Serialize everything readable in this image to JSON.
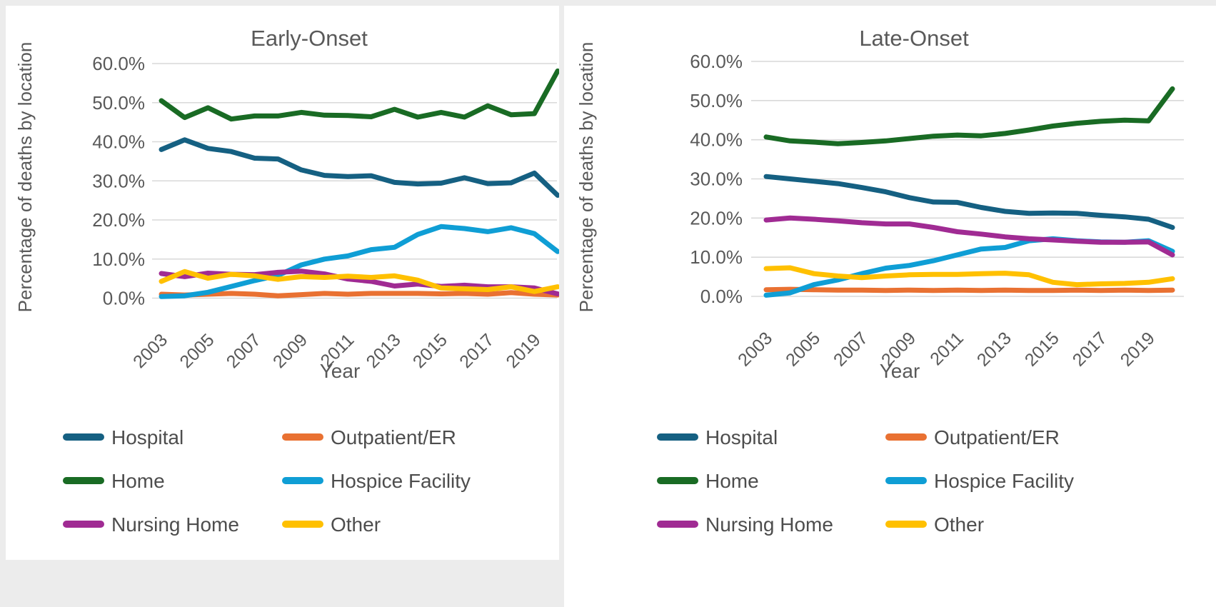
{
  "page": {
    "background": "#ececec",
    "panel_background": "#ffffff",
    "text_color": "#595959",
    "grid_color": "#d9d9d9"
  },
  "chart_data": [
    {
      "type": "line",
      "title": "Early-Onset",
      "ylabel": "Percentage of deaths by location",
      "xlabel": "Year",
      "x": [
        2003,
        2004,
        2005,
        2006,
        2007,
        2008,
        2009,
        2010,
        2011,
        2012,
        2013,
        2014,
        2015,
        2016,
        2017,
        2018,
        2019,
        2020
      ],
      "x_tick_years": [
        2003,
        2005,
        2007,
        2009,
        2011,
        2013,
        2015,
        2017,
        2019
      ],
      "x_tick_labels": [
        "2003",
        "2005",
        "2007",
        "2009",
        "2011",
        "2013",
        "2015",
        "2017",
        "2019"
      ],
      "ylim": [
        0,
        60
      ],
      "y_tick_values": [
        60,
        50,
        40,
        30,
        20,
        10,
        0
      ],
      "y_tick_labels": [
        "60.0%",
        "50.0%",
        "40.0%",
        "30.0%",
        "20.0%",
        "10.0%",
        "0.0%"
      ],
      "grid": true,
      "legend_position": "bottom",
      "series": [
        {
          "name": "Hospital",
          "color": "#156082",
          "values": [
            38.0,
            40.5,
            38.3,
            37.5,
            35.8,
            35.6,
            32.8,
            31.4,
            31.1,
            31.3,
            29.6,
            29.2,
            29.4,
            30.8,
            29.3,
            29.5,
            32.0,
            26.3
          ]
        },
        {
          "name": "Outpatient/ER",
          "color": "#E97132",
          "values": [
            1.0,
            0.8,
            1.0,
            1.2,
            1.0,
            0.6,
            0.9,
            1.2,
            1.0,
            1.2,
            1.2,
            1.2,
            1.1,
            1.2,
            1.0,
            1.4,
            1.0,
            0.8
          ]
        },
        {
          "name": "Home",
          "color": "#196B24",
          "values": [
            50.5,
            46.2,
            48.7,
            45.8,
            46.6,
            46.6,
            47.5,
            46.8,
            46.7,
            46.4,
            48.3,
            46.3,
            47.5,
            46.3,
            49.2,
            46.9,
            47.2,
            58.1
          ]
        },
        {
          "name": "Hospice Facility",
          "color": "#0F9ED5",
          "values": [
            0.4,
            0.6,
            1.5,
            3.0,
            4.5,
            5.8,
            8.5,
            10.0,
            10.8,
            12.4,
            13.0,
            16.3,
            18.3,
            17.8,
            17.0,
            18.0,
            16.5,
            11.9
          ]
        },
        {
          "name": "Nursing Home",
          "color": "#A02B93",
          "values": [
            6.3,
            5.5,
            6.4,
            6.1,
            6.0,
            6.6,
            6.9,
            6.2,
            4.9,
            4.3,
            3.1,
            3.6,
            3.0,
            3.3,
            2.9,
            2.9,
            2.6,
            1.1
          ]
        },
        {
          "name": "Other",
          "color": "#FFC000",
          "values": [
            4.3,
            6.8,
            5.1,
            6.1,
            5.7,
            4.8,
            5.5,
            5.3,
            5.6,
            5.3,
            5.7,
            4.6,
            2.6,
            2.4,
            2.2,
            2.9,
            1.7,
            2.9
          ]
        }
      ]
    },
    {
      "type": "line",
      "title": "Late-Onset",
      "ylabel": "Percentage of deaths by location",
      "xlabel": "Year",
      "x": [
        2003,
        2004,
        2005,
        2006,
        2007,
        2008,
        2009,
        2010,
        2011,
        2012,
        2013,
        2014,
        2015,
        2016,
        2017,
        2018,
        2019,
        2020
      ],
      "x_tick_years": [
        2003,
        2005,
        2007,
        2009,
        2011,
        2013,
        2015,
        2017,
        2019
      ],
      "x_tick_labels": [
        "2003",
        "2005",
        "2007",
        "2009",
        "2011",
        "2013",
        "2015",
        "2017",
        "2019"
      ],
      "ylim": [
        0,
        60
      ],
      "y_tick_values": [
        60,
        50,
        40,
        30,
        20,
        10,
        0
      ],
      "y_tick_labels": [
        "60.0%",
        "50.0%",
        "40.0%",
        "30.0%",
        "20.0%",
        "10.0%",
        "0.0%"
      ],
      "grid": true,
      "legend_position": "bottom",
      "series": [
        {
          "name": "Hospital",
          "color": "#156082",
          "values": [
            30.6,
            30.0,
            29.4,
            28.8,
            27.8,
            26.7,
            25.2,
            24.1,
            24.0,
            22.7,
            21.7,
            21.2,
            21.3,
            21.2,
            20.7,
            20.3,
            19.7,
            17.6
          ]
        },
        {
          "name": "Outpatient/ER",
          "color": "#E97132",
          "values": [
            1.7,
            1.8,
            1.7,
            1.6,
            1.6,
            1.5,
            1.6,
            1.5,
            1.6,
            1.5,
            1.6,
            1.5,
            1.5,
            1.6,
            1.5,
            1.6,
            1.5,
            1.6
          ]
        },
        {
          "name": "Home",
          "color": "#196B24",
          "values": [
            40.7,
            39.7,
            39.4,
            39.0,
            39.3,
            39.7,
            40.3,
            40.9,
            41.2,
            41.0,
            41.6,
            42.5,
            43.5,
            44.2,
            44.7,
            45.0,
            44.8,
            53.0
          ]
        },
        {
          "name": "Hospice Facility",
          "color": "#0F9ED5",
          "values": [
            0.3,
            0.9,
            3.0,
            4.2,
            5.8,
            7.2,
            7.9,
            9.1,
            10.6,
            12.1,
            12.5,
            14.2,
            14.7,
            14.2,
            13.9,
            13.8,
            14.2,
            11.5
          ]
        },
        {
          "name": "Nursing Home",
          "color": "#A02B93",
          "values": [
            19.5,
            20.0,
            19.7,
            19.3,
            18.8,
            18.5,
            18.5,
            17.6,
            16.5,
            15.9,
            15.2,
            14.7,
            14.4,
            14.1,
            13.8,
            13.8,
            13.9,
            10.6
          ]
        },
        {
          "name": "Other",
          "color": "#FFC000",
          "values": [
            7.1,
            7.3,
            5.8,
            5.2,
            4.8,
            5.2,
            5.5,
            5.6,
            5.6,
            5.8,
            5.9,
            5.5,
            3.6,
            3.0,
            3.2,
            3.3,
            3.6,
            4.5
          ]
        }
      ]
    }
  ]
}
